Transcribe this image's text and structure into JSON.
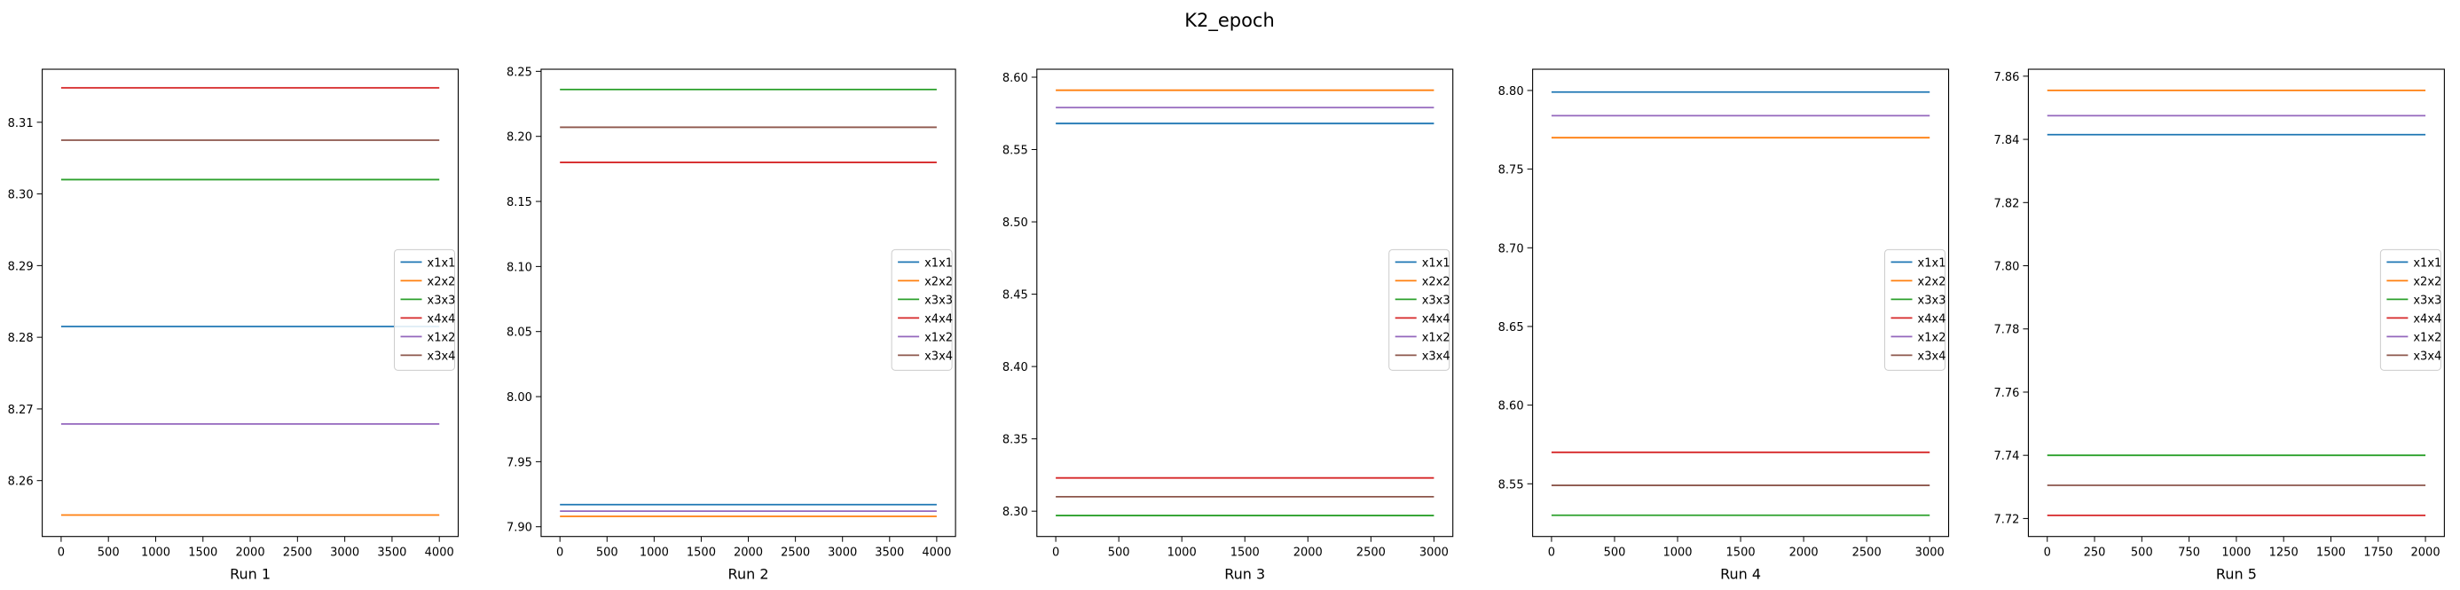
{
  "figure": {
    "title": "K2_epoch"
  },
  "chart_data": [
    {
      "type": "line",
      "xlabel": "Run 1",
      "xlim": [
        -200,
        4200
      ],
      "ylim": [
        8.2522,
        8.3174
      ],
      "xticks": [
        0,
        500,
        1000,
        1500,
        2000,
        2500,
        3000,
        3500,
        4000
      ],
      "yticks": [
        8.26,
        8.27,
        8.28,
        8.29,
        8.3,
        8.31
      ],
      "ytick_labels": [
        "8.26",
        "8.27",
        "8.28",
        "8.29",
        "8.30",
        "8.31"
      ],
      "x_range": [
        0,
        4000
      ],
      "legend": "center-right",
      "series": [
        {
          "name": "x1x1",
          "color": "#1f77b4",
          "value": 8.2815
        },
        {
          "name": "x2x2",
          "color": "#ff7f0e",
          "value": 8.2552
        },
        {
          "name": "x3x3",
          "color": "#2ca02c",
          "value": 8.302
        },
        {
          "name": "x4x4",
          "color": "#d62728",
          "value": 8.3148
        },
        {
          "name": "x1x2",
          "color": "#9467bd",
          "value": 8.2679
        },
        {
          "name": "x3x4",
          "color": "#8c564b",
          "value": 8.3075
        }
      ]
    },
    {
      "type": "line",
      "xlabel": "Run 2",
      "xlim": [
        -200,
        4200
      ],
      "ylim": [
        7.8925,
        8.2516
      ],
      "xticks": [
        0,
        500,
        1000,
        1500,
        2000,
        2500,
        3000,
        3500,
        4000
      ],
      "yticks": [
        7.9,
        7.95,
        8.0,
        8.05,
        8.1,
        8.15,
        8.2,
        8.25
      ],
      "ytick_labels": [
        "7.90",
        "7.95",
        "8.00",
        "8.05",
        "8.10",
        "8.15",
        "8.20",
        "8.25"
      ],
      "x_range": [
        0,
        4000
      ],
      "legend": "center-right",
      "series": [
        {
          "name": "x1x1",
          "color": "#1f77b4",
          "value": 7.917
        },
        {
          "name": "x2x2",
          "color": "#ff7f0e",
          "value": 7.908
        },
        {
          "name": "x3x3",
          "color": "#2ca02c",
          "value": 8.236
        },
        {
          "name": "x4x4",
          "color": "#d62728",
          "value": 8.18
        },
        {
          "name": "x1x2",
          "color": "#9467bd",
          "value": 7.912
        },
        {
          "name": "x3x4",
          "color": "#8c564b",
          "value": 8.207
        }
      ]
    },
    {
      "type": "line",
      "xlabel": "Run 3",
      "xlim": [
        -150,
        3150
      ],
      "ylim": [
        8.2825,
        8.6055
      ],
      "xticks": [
        0,
        500,
        1000,
        1500,
        2000,
        2500,
        3000
      ],
      "yticks": [
        8.3,
        8.35,
        8.4,
        8.45,
        8.5,
        8.55,
        8.6
      ],
      "ytick_labels": [
        "8.30",
        "8.35",
        "8.40",
        "8.45",
        "8.50",
        "8.55",
        "8.60"
      ],
      "x_range": [
        0,
        3000
      ],
      "legend": "center-right",
      "series": [
        {
          "name": "x1x1",
          "color": "#1f77b4",
          "value": 8.568
        },
        {
          "name": "x2x2",
          "color": "#ff7f0e",
          "value": 8.591
        },
        {
          "name": "x3x3",
          "color": "#2ca02c",
          "value": 8.297
        },
        {
          "name": "x4x4",
          "color": "#d62728",
          "value": 8.323
        },
        {
          "name": "x1x2",
          "color": "#9467bd",
          "value": 8.579
        },
        {
          "name": "x3x4",
          "color": "#8c564b",
          "value": 8.31
        }
      ]
    },
    {
      "type": "line",
      "xlabel": "Run 4",
      "xlim": [
        -150,
        3150
      ],
      "ylim": [
        8.5165,
        8.8135
      ],
      "xticks": [
        0,
        500,
        1000,
        1500,
        2000,
        2500,
        3000
      ],
      "yticks": [
        8.55,
        8.6,
        8.65,
        8.7,
        8.75,
        8.8
      ],
      "ytick_labels": [
        "8.55",
        "8.60",
        "8.65",
        "8.70",
        "8.75",
        "8.80"
      ],
      "x_range": [
        0,
        3000
      ],
      "legend": "center-right",
      "series": [
        {
          "name": "x1x1",
          "color": "#1f77b4",
          "value": 8.799
        },
        {
          "name": "x2x2",
          "color": "#ff7f0e",
          "value": 8.77
        },
        {
          "name": "x3x3",
          "color": "#2ca02c",
          "value": 8.53
        },
        {
          "name": "x4x4",
          "color": "#d62728",
          "value": 8.57
        },
        {
          "name": "x1x2",
          "color": "#9467bd",
          "value": 8.784
        },
        {
          "name": "x3x4",
          "color": "#8c564b",
          "value": 8.549
        }
      ]
    },
    {
      "type": "line",
      "xlabel": "Run 5",
      "xlim": [
        -100,
        2100
      ],
      "ylim": [
        7.7143,
        7.8622
      ],
      "xticks": [
        0,
        250,
        500,
        750,
        1000,
        1250,
        1500,
        1750,
        2000
      ],
      "yticks": [
        7.72,
        7.74,
        7.76,
        7.78,
        7.8,
        7.82,
        7.84,
        7.86
      ],
      "ytick_labels": [
        "7.72",
        "7.74",
        "7.76",
        "7.78",
        "7.80",
        "7.82",
        "7.84",
        "7.86"
      ],
      "x_range": [
        0,
        2000
      ],
      "legend": "center-right",
      "series": [
        {
          "name": "x1x1",
          "color": "#1f77b4",
          "value": 7.8415
        },
        {
          "name": "x2x2",
          "color": "#ff7f0e",
          "value": 7.8555
        },
        {
          "name": "x3x3",
          "color": "#2ca02c",
          "value": 7.74
        },
        {
          "name": "x4x4",
          "color": "#d62728",
          "value": 7.721
        },
        {
          "name": "x1x2",
          "color": "#9467bd",
          "value": 7.8475
        },
        {
          "name": "x3x4",
          "color": "#8c564b",
          "value": 7.7305
        }
      ]
    }
  ]
}
